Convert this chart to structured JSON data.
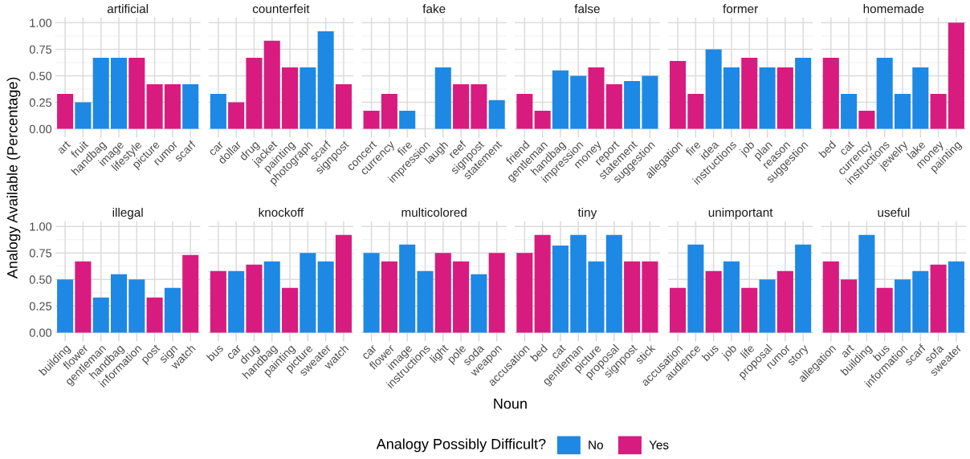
{
  "chart_data": [
    {
      "type": "bar",
      "title": "artificial",
      "ylabel": "Analogy Available (Percentage)",
      "legend_title": "Analogy Possibly Difficult?",
      "legend": "bottom",
      "grid": true,
      "ylim": [
        -0.05,
        1.05
      ],
      "yticks": [
        {
          "value": 0,
          "label": "0.00"
        },
        {
          "value": 0.25,
          "label": "0.25"
        },
        {
          "value": 0.5,
          "label": "0.50"
        },
        {
          "value": 0.75,
          "label": "0.75"
        },
        {
          "value": 1,
          "label": "1.00"
        }
      ],
      "categories": [
        "art",
        "fruit",
        "handbag",
        "image",
        "lifestyle",
        "picture",
        "rumor",
        "scarf"
      ],
      "series": [
        {
          "name": "No",
          "color": "#1e88e5",
          "values": [
            null,
            0.25,
            0.67,
            0.67,
            null,
            null,
            null,
            0.42
          ]
        },
        {
          "name": "Yes",
          "color": "#d81b7f",
          "values": [
            0.33,
            null,
            null,
            null,
            0.67,
            0.42,
            0.42,
            null
          ]
        }
      ]
    },
    {
      "type": "bar",
      "title": "counterfeit",
      "tick_labels": "x",
      "grid": true,
      "ylim": [
        -0.05,
        1.05
      ],
      "yticks": [
        {
          "value": 0,
          "label": "0.00"
        },
        {
          "value": 0.25,
          "label": "0.25"
        },
        {
          "value": 0.5,
          "label": "0.50"
        },
        {
          "value": 0.75,
          "label": "0.75"
        },
        {
          "value": 1,
          "label": "1.00"
        }
      ],
      "categories": [
        "car",
        "dollar",
        "drug",
        "jacket",
        "painting",
        "photograph",
        "scarf",
        "signpost"
      ],
      "series": [
        {
          "name": "No",
          "color": "#1e88e5",
          "values": [
            0.33,
            null,
            null,
            null,
            null,
            0.58,
            0.92,
            null
          ]
        },
        {
          "name": "Yes",
          "color": "#d81b7f",
          "values": [
            null,
            0.25,
            0.67,
            0.83,
            0.58,
            null,
            null,
            0.42
          ]
        }
      ]
    },
    {
      "type": "bar",
      "title": "fake",
      "tick_labels": "x",
      "grid": true,
      "ylim": [
        -0.05,
        1.05
      ],
      "yticks": [
        {
          "value": 0,
          "label": "0.00"
        },
        {
          "value": 0.25,
          "label": "0.25"
        },
        {
          "value": 0.5,
          "label": "0.50"
        },
        {
          "value": 0.75,
          "label": "0.75"
        },
        {
          "value": 1,
          "label": "1.00"
        }
      ],
      "categories": [
        "concert",
        "currency",
        "fire",
        "impression",
        "laugh",
        "reef",
        "signpost",
        "statement"
      ],
      "series": [
        {
          "name": "No",
          "color": "#1e88e5",
          "values": [
            null,
            null,
            0.17,
            null,
            0.58,
            null,
            null,
            0.27
          ]
        },
        {
          "name": "Yes",
          "color": "#d81b7f",
          "values": [
            0.17,
            0.33,
            null,
            null,
            null,
            0.42,
            0.42,
            null
          ]
        }
      ]
    },
    {
      "type": "bar",
      "title": "false",
      "tick_labels": "x",
      "grid": true,
      "ylim": [
        -0.05,
        1.05
      ],
      "yticks": [
        {
          "value": 0,
          "label": "0.00"
        },
        {
          "value": 0.25,
          "label": "0.25"
        },
        {
          "value": 0.5,
          "label": "0.50"
        },
        {
          "value": 0.75,
          "label": "0.75"
        },
        {
          "value": 1,
          "label": "1.00"
        }
      ],
      "categories": [
        "friend",
        "gentleman",
        "handbag",
        "impression",
        "money",
        "report",
        "statement",
        "suggestion"
      ],
      "series": [
        {
          "name": "No",
          "color": "#1e88e5",
          "values": [
            null,
            null,
            0.55,
            0.5,
            null,
            null,
            0.45,
            0.5
          ]
        },
        {
          "name": "Yes",
          "color": "#d81b7f",
          "values": [
            0.33,
            0.17,
            null,
            null,
            0.58,
            0.42,
            null,
            null
          ]
        }
      ]
    },
    {
      "type": "bar",
      "title": "former",
      "tick_labels": "x",
      "grid": true,
      "ylim": [
        -0.05,
        1.05
      ],
      "yticks": [
        {
          "value": 0,
          "label": "0.00"
        },
        {
          "value": 0.25,
          "label": "0.25"
        },
        {
          "value": 0.5,
          "label": "0.50"
        },
        {
          "value": 0.75,
          "label": "0.75"
        },
        {
          "value": 1,
          "label": "1.00"
        }
      ],
      "categories": [
        "allegation",
        "fire",
        "idea",
        "instructions",
        "job",
        "plan",
        "reason",
        "suggestion"
      ],
      "series": [
        {
          "name": "No",
          "color": "#1e88e5",
          "values": [
            null,
            null,
            0.75,
            0.58,
            null,
            0.58,
            null,
            0.67
          ]
        },
        {
          "name": "Yes",
          "color": "#d81b7f",
          "values": [
            0.64,
            0.33,
            null,
            null,
            0.67,
            null,
            0.58,
            null
          ]
        }
      ]
    },
    {
      "type": "bar",
      "title": "homemade",
      "tick_labels": "x",
      "grid": true,
      "ylim": [
        -0.05,
        1.05
      ],
      "yticks": [
        {
          "value": 0,
          "label": "0.00"
        },
        {
          "value": 0.25,
          "label": "0.25"
        },
        {
          "value": 0.5,
          "label": "0.50"
        },
        {
          "value": 0.75,
          "label": "0.75"
        },
        {
          "value": 1,
          "label": "1.00"
        }
      ],
      "categories": [
        "bed",
        "cat",
        "currency",
        "instructions",
        "jewelry",
        "lake",
        "money",
        "painting"
      ],
      "series": [
        {
          "name": "No",
          "color": "#1e88e5",
          "values": [
            null,
            0.33,
            null,
            0.67,
            0.33,
            0.58,
            null,
            null
          ]
        },
        {
          "name": "Yes",
          "color": "#d81b7f",
          "values": [
            0.67,
            null,
            0.17,
            null,
            null,
            null,
            0.33,
            1.0
          ]
        }
      ]
    },
    {
      "type": "bar",
      "title": "illegal",
      "grid": true,
      "ylim": [
        -0.05,
        1.05
      ],
      "yticks": [
        {
          "value": 0,
          "label": "0.00"
        },
        {
          "value": 0.25,
          "label": "0.25"
        },
        {
          "value": 0.5,
          "label": "0.50"
        },
        {
          "value": 0.75,
          "label": "0.75"
        },
        {
          "value": 1,
          "label": "1.00"
        }
      ],
      "categories": [
        "building",
        "flower",
        "gentleman",
        "handbag",
        "information",
        "post",
        "sign",
        "watch"
      ],
      "series": [
        {
          "name": "No",
          "color": "#1e88e5",
          "values": [
            0.5,
            null,
            0.33,
            0.55,
            0.5,
            null,
            0.42,
            null
          ]
        },
        {
          "name": "Yes",
          "color": "#d81b7f",
          "values": [
            null,
            0.67,
            null,
            null,
            null,
            0.33,
            null,
            0.73
          ]
        }
      ]
    },
    {
      "type": "bar",
      "title": "knockoff",
      "tick_labels": "x",
      "grid": true,
      "ylim": [
        -0.05,
        1.05
      ],
      "yticks": [
        {
          "value": 0,
          "label": "0.00"
        },
        {
          "value": 0.25,
          "label": "0.25"
        },
        {
          "value": 0.5,
          "label": "0.50"
        },
        {
          "value": 0.75,
          "label": "0.75"
        },
        {
          "value": 1,
          "label": "1.00"
        }
      ],
      "categories": [
        "bus",
        "car",
        "drug",
        "handbag",
        "painting",
        "picture",
        "sweater",
        "watch"
      ],
      "series": [
        {
          "name": "No",
          "color": "#1e88e5",
          "values": [
            null,
            0.58,
            null,
            0.67,
            null,
            0.75,
            0.67,
            null
          ]
        },
        {
          "name": "Yes",
          "color": "#d81b7f",
          "values": [
            0.58,
            null,
            0.64,
            null,
            0.42,
            null,
            null,
            0.92
          ]
        }
      ]
    },
    {
      "type": "bar",
      "title": "multicolored",
      "xlabel": "Noun",
      "tick_labels": "x",
      "grid": true,
      "ylim": [
        -0.05,
        1.05
      ],
      "yticks": [
        {
          "value": 0,
          "label": "0.00"
        },
        {
          "value": 0.25,
          "label": "0.25"
        },
        {
          "value": 0.5,
          "label": "0.50"
        },
        {
          "value": 0.75,
          "label": "0.75"
        },
        {
          "value": 1,
          "label": "1.00"
        }
      ],
      "categories": [
        "car",
        "flower",
        "image",
        "instructions",
        "light",
        "pole",
        "soda",
        "weapon"
      ],
      "series": [
        {
          "name": "No",
          "color": "#1e88e5",
          "values": [
            0.75,
            null,
            0.83,
            0.58,
            null,
            null,
            0.55,
            null
          ]
        },
        {
          "name": "Yes",
          "color": "#d81b7f",
          "values": [
            null,
            0.67,
            null,
            null,
            0.75,
            0.67,
            null,
            0.75
          ]
        }
      ]
    },
    {
      "type": "bar",
      "title": "tiny",
      "tick_labels": "x",
      "grid": true,
      "ylim": [
        -0.05,
        1.05
      ],
      "yticks": [
        {
          "value": 0,
          "label": "0.00"
        },
        {
          "value": 0.25,
          "label": "0.25"
        },
        {
          "value": 0.5,
          "label": "0.50"
        },
        {
          "value": 0.75,
          "label": "0.75"
        },
        {
          "value": 1,
          "label": "1.00"
        }
      ],
      "categories": [
        "accusation",
        "bed",
        "cat",
        "gentleman",
        "picture",
        "proposal",
        "signpost",
        "stick"
      ],
      "series": [
        {
          "name": "No",
          "color": "#1e88e5",
          "values": [
            null,
            null,
            0.82,
            0.92,
            0.67,
            0.92,
            null,
            null
          ]
        },
        {
          "name": "Yes",
          "color": "#d81b7f",
          "values": [
            0.75,
            0.92,
            null,
            null,
            null,
            null,
            0.67,
            0.67
          ]
        }
      ]
    },
    {
      "type": "bar",
      "title": "unimportant",
      "tick_labels": "x",
      "grid": true,
      "ylim": [
        -0.05,
        1.05
      ],
      "yticks": [
        {
          "value": 0,
          "label": "0.00"
        },
        {
          "value": 0.25,
          "label": "0.25"
        },
        {
          "value": 0.5,
          "label": "0.50"
        },
        {
          "value": 0.75,
          "label": "0.75"
        },
        {
          "value": 1,
          "label": "1.00"
        }
      ],
      "categories": [
        "accusation",
        "audience",
        "bus",
        "job",
        "life",
        "proposal",
        "rumor",
        "story"
      ],
      "series": [
        {
          "name": "No",
          "color": "#1e88e5",
          "values": [
            null,
            0.83,
            null,
            0.67,
            null,
            0.5,
            null,
            0.83
          ]
        },
        {
          "name": "Yes",
          "color": "#d81b7f",
          "values": [
            0.42,
            null,
            0.58,
            null,
            0.42,
            null,
            0.58,
            null
          ]
        }
      ]
    },
    {
      "type": "bar",
      "title": "useful",
      "tick_labels": "x",
      "grid": true,
      "ylim": [
        -0.05,
        1.05
      ],
      "yticks": [
        {
          "value": 0,
          "label": "0.00"
        },
        {
          "value": 0.25,
          "label": "0.25"
        },
        {
          "value": 0.5,
          "label": "0.50"
        },
        {
          "value": 0.75,
          "label": "0.75"
        },
        {
          "value": 1,
          "label": "1.00"
        }
      ],
      "categories": [
        "allegation",
        "art",
        "building",
        "bus",
        "information",
        "scarf",
        "sofa",
        "sweater"
      ],
      "series": [
        {
          "name": "No",
          "color": "#1e88e5",
          "values": [
            null,
            null,
            0.92,
            null,
            0.5,
            0.58,
            null,
            0.67
          ]
        },
        {
          "name": "Yes",
          "color": "#d81b7f",
          "values": [
            0.67,
            0.5,
            null,
            0.42,
            null,
            null,
            0.64,
            null
          ]
        }
      ]
    }
  ]
}
